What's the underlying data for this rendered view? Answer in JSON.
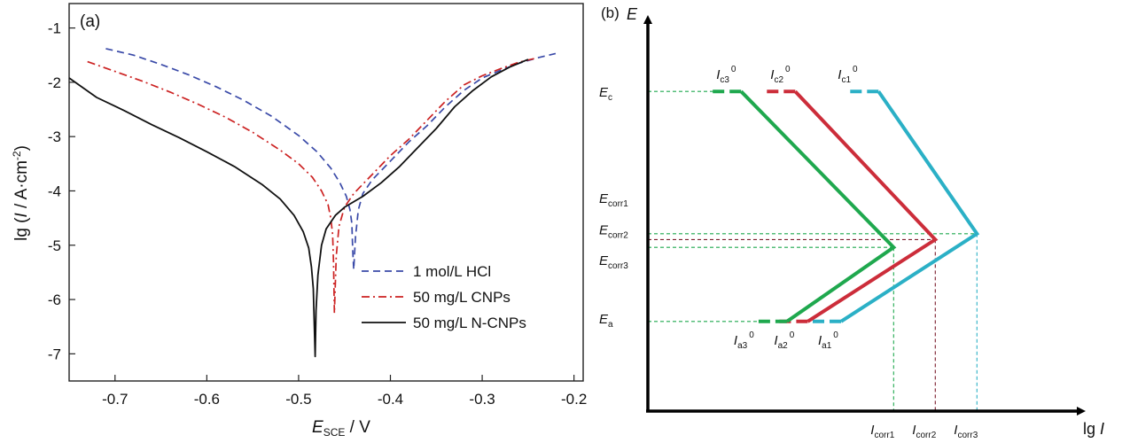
{
  "chart_data": [
    {
      "type": "line",
      "panel_label": "(a)",
      "xlabel": {
        "main": "E",
        "sub": "SCE",
        "rest": " / V"
      },
      "ylabel": {
        "pre": "lg (",
        "i": "I",
        "post": " / A·cm",
        "sup": "-2",
        "close": ")"
      },
      "xlim": [
        -0.75,
        -0.19
      ],
      "ylim": [
        -7.5,
        -0.55
      ],
      "xticks": [
        -0.7,
        -0.6,
        -0.5,
        -0.4,
        -0.3,
        -0.2
      ],
      "xtick_labels": [
        "-0.7",
        "-0.6",
        "-0.5",
        "-0.4",
        "-0.3",
        "-0.2"
      ],
      "yticks": [
        -1,
        -2,
        -3,
        -4,
        -5,
        -6,
        -7
      ],
      "ytick_labels": [
        "-1",
        "-2",
        "-3",
        "-4",
        "-5",
        "-6",
        "-7"
      ],
      "legend_position": "lower-right",
      "series": [
        {
          "name": "1 mol/L HCl",
          "style": "dashed",
          "color": "#3a4aa8",
          "x": [
            -0.71,
            -0.68,
            -0.65,
            -0.62,
            -0.59,
            -0.56,
            -0.53,
            -0.5,
            -0.48,
            -0.465,
            -0.455,
            -0.448,
            -0.444,
            -0.442,
            -0.441,
            -0.44,
            -0.438,
            -0.435,
            -0.43,
            -0.42,
            -0.4,
            -0.38,
            -0.36,
            -0.34,
            -0.32,
            -0.3,
            -0.28,
            -0.26,
            -0.24,
            -0.22
          ],
          "y": [
            -1.38,
            -1.5,
            -1.67,
            -1.86,
            -2.08,
            -2.33,
            -2.62,
            -2.98,
            -3.28,
            -3.58,
            -3.85,
            -4.1,
            -4.35,
            -4.6,
            -5.1,
            -5.45,
            -4.85,
            -4.35,
            -4.05,
            -3.8,
            -3.45,
            -3.1,
            -2.8,
            -2.45,
            -2.15,
            -1.92,
            -1.78,
            -1.65,
            -1.55,
            -1.47
          ]
        },
        {
          "name": "50 mg/L CNPs",
          "style": "dashdot",
          "color": "#cc2222",
          "x": [
            -0.73,
            -0.7,
            -0.67,
            -0.64,
            -0.61,
            -0.58,
            -0.55,
            -0.52,
            -0.5,
            -0.485,
            -0.475,
            -0.468,
            -0.465,
            -0.463,
            -0.462,
            -0.461,
            -0.459,
            -0.456,
            -0.45,
            -0.44,
            -0.42,
            -0.4,
            -0.38,
            -0.36,
            -0.34,
            -0.32,
            -0.3,
            -0.28,
            -0.26,
            -0.24
          ],
          "y": [
            -1.62,
            -1.8,
            -1.98,
            -2.18,
            -2.4,
            -2.64,
            -2.92,
            -3.25,
            -3.5,
            -3.75,
            -4.0,
            -4.25,
            -4.5,
            -4.8,
            -5.3,
            -6.25,
            -5.2,
            -4.65,
            -4.3,
            -4.05,
            -3.7,
            -3.35,
            -3.05,
            -2.7,
            -2.35,
            -2.05,
            -1.88,
            -1.75,
            -1.63,
            -1.55
          ]
        },
        {
          "name": "50 mg/L N-CNPs",
          "style": "solid",
          "color": "#111111",
          "x": [
            -0.75,
            -0.72,
            -0.69,
            -0.66,
            -0.63,
            -0.6,
            -0.57,
            -0.54,
            -0.52,
            -0.505,
            -0.495,
            -0.489,
            -0.486,
            -0.484,
            -0.483,
            -0.482,
            -0.481,
            -0.479,
            -0.475,
            -0.47,
            -0.46,
            -0.45,
            -0.43,
            -0.41,
            -0.39,
            -0.37,
            -0.35,
            -0.33,
            -0.31,
            -0.29,
            -0.27,
            -0.25
          ],
          "y": [
            -1.92,
            -2.28,
            -2.52,
            -2.78,
            -3.02,
            -3.28,
            -3.55,
            -3.88,
            -4.15,
            -4.45,
            -4.75,
            -5.05,
            -5.4,
            -5.8,
            -6.4,
            -7.05,
            -6.2,
            -5.55,
            -5.0,
            -4.7,
            -4.45,
            -4.3,
            -4.1,
            -3.85,
            -3.55,
            -3.2,
            -2.85,
            -2.45,
            -2.15,
            -1.9,
            -1.72,
            -1.58
          ]
        }
      ]
    },
    {
      "type": "diagram",
      "panel_label": "(b)",
      "x_axis_label": {
        "pre": "lg ",
        "i": "I"
      },
      "y_axis_label": "E",
      "units": "arbitrary",
      "E_levels": {
        "Ec": 0.82,
        "Ecorr1": 0.455,
        "Ecorr2": 0.44,
        "Ecorr3": 0.42,
        "Ea": 0.23
      },
      "E_labels": [
        {
          "main": "E",
          "sub": "c"
        },
        {
          "main": "E",
          "sub": "corr1"
        },
        {
          "main": "E",
          "sub": "corr2"
        },
        {
          "main": "E",
          "sub": "corr3"
        },
        {
          "main": "E",
          "sub": "a"
        }
      ],
      "lines": [
        {
          "id": "1",
          "color": "#2bb0c6",
          "i_c0": 0.49,
          "i_a0": 0.4,
          "i_corr": 0.79,
          "E_corr": 0.455
        },
        {
          "id": "2",
          "color": "#cc2d3a",
          "i_c0": 0.29,
          "i_a0": 0.32,
          "i_corr": 0.69,
          "E_corr": 0.44
        },
        {
          "id": "3",
          "color": "#1fa84e",
          "i_c0": 0.16,
          "i_a0": 0.27,
          "i_corr": 0.59,
          "E_corr": 0.42
        }
      ],
      "top_labels": [
        {
          "main": "I",
          "sub": "c3",
          "sup": "0"
        },
        {
          "main": "I",
          "sub": "c2",
          "sup": "0"
        },
        {
          "main": "I",
          "sub": "c1",
          "sup": "0"
        }
      ],
      "bottom_labels": [
        {
          "main": "I",
          "sub": "a3",
          "sup": "0"
        },
        {
          "main": "I",
          "sub": "a2",
          "sup": "0"
        },
        {
          "main": "I",
          "sub": "a1",
          "sup": "0"
        }
      ],
      "axis_labels": [
        {
          "main": "I",
          "sub": "corr1"
        },
        {
          "main": "I",
          "sub": "corr2"
        },
        {
          "main": "I",
          "sub": "corr3"
        }
      ]
    }
  ]
}
